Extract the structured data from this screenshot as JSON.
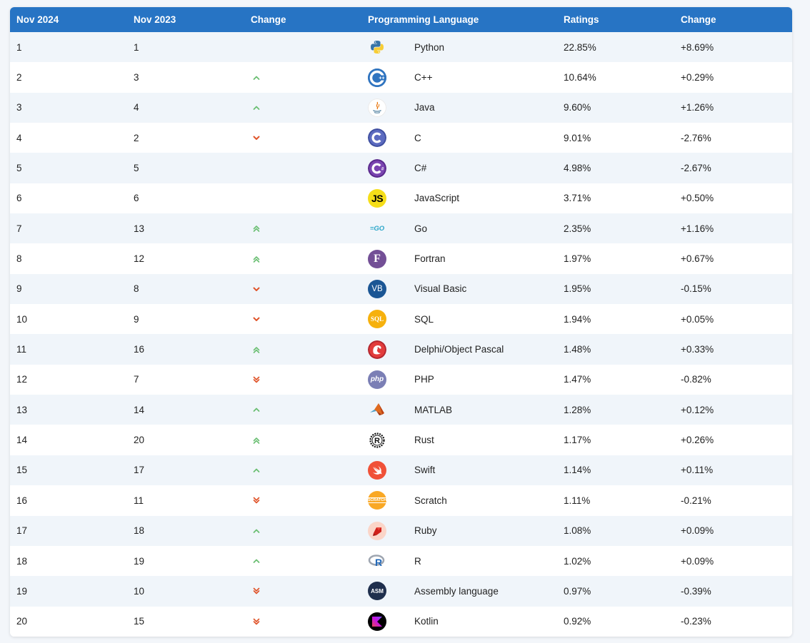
{
  "header": {
    "col_nov2024": "Nov 2024",
    "col_nov2023": "Nov 2023",
    "col_change": "Change",
    "col_language": "Programming Language",
    "col_ratings": "Ratings",
    "col_change2": "Change"
  },
  "colors": {
    "header_bg": "#2774c4",
    "up": "#6bbf73",
    "down": "#e0552b",
    "row_alt": "#f0f5fa"
  },
  "rows": [
    {
      "rank": "1",
      "prev": "1",
      "trend": "none",
      "lang": "Python",
      "rating": "22.85%",
      "change": "+8.69%",
      "logo": "python-logo"
    },
    {
      "rank": "2",
      "prev": "3",
      "trend": "up",
      "lang": "C++",
      "rating": "10.64%",
      "change": "+0.29%",
      "logo": "cpp-logo"
    },
    {
      "rank": "3",
      "prev": "4",
      "trend": "up",
      "lang": "Java",
      "rating": "9.60%",
      "change": "+1.26%",
      "logo": "java-logo"
    },
    {
      "rank": "4",
      "prev": "2",
      "trend": "down",
      "lang": "C",
      "rating": "9.01%",
      "change": "-2.76%",
      "logo": "c-logo"
    },
    {
      "rank": "5",
      "prev": "5",
      "trend": "none",
      "lang": "C#",
      "rating": "4.98%",
      "change": "-2.67%",
      "logo": "csharp-logo"
    },
    {
      "rank": "6",
      "prev": "6",
      "trend": "none",
      "lang": "JavaScript",
      "rating": "3.71%",
      "change": "+0.50%",
      "logo": "javascript-logo"
    },
    {
      "rank": "7",
      "prev": "13",
      "trend": "up2",
      "lang": "Go",
      "rating": "2.35%",
      "change": "+1.16%",
      "logo": "go-logo"
    },
    {
      "rank": "8",
      "prev": "12",
      "trend": "up2",
      "lang": "Fortran",
      "rating": "1.97%",
      "change": "+0.67%",
      "logo": "fortran-logo"
    },
    {
      "rank": "9",
      "prev": "8",
      "trend": "down",
      "lang": "Visual Basic",
      "rating": "1.95%",
      "change": "-0.15%",
      "logo": "visual-basic-logo"
    },
    {
      "rank": "10",
      "prev": "9",
      "trend": "down",
      "lang": "SQL",
      "rating": "1.94%",
      "change": "+0.05%",
      "logo": "sql-logo"
    },
    {
      "rank": "11",
      "prev": "16",
      "trend": "up2",
      "lang": "Delphi/Object Pascal",
      "rating": "1.48%",
      "change": "+0.33%",
      "logo": "delphi-logo"
    },
    {
      "rank": "12",
      "prev": "7",
      "trend": "down2",
      "lang": "PHP",
      "rating": "1.47%",
      "change": "-0.82%",
      "logo": "php-logo"
    },
    {
      "rank": "13",
      "prev": "14",
      "trend": "up",
      "lang": "MATLAB",
      "rating": "1.28%",
      "change": "+0.12%",
      "logo": "matlab-logo"
    },
    {
      "rank": "14",
      "prev": "20",
      "trend": "up2",
      "lang": "Rust",
      "rating": "1.17%",
      "change": "+0.26%",
      "logo": "rust-logo"
    },
    {
      "rank": "15",
      "prev": "17",
      "trend": "up",
      "lang": "Swift",
      "rating": "1.14%",
      "change": "+0.11%",
      "logo": "swift-logo"
    },
    {
      "rank": "16",
      "prev": "11",
      "trend": "down2",
      "lang": "Scratch",
      "rating": "1.11%",
      "change": "-0.21%",
      "logo": "scratch-logo"
    },
    {
      "rank": "17",
      "prev": "18",
      "trend": "up",
      "lang": "Ruby",
      "rating": "1.08%",
      "change": "+0.09%",
      "logo": "ruby-logo"
    },
    {
      "rank": "18",
      "prev": "19",
      "trend": "up",
      "lang": "R",
      "rating": "1.02%",
      "change": "+0.09%",
      "logo": "r-logo"
    },
    {
      "rank": "19",
      "prev": "10",
      "trend": "down2",
      "lang": "Assembly language",
      "rating": "0.97%",
      "change": "-0.39%",
      "logo": "assembly-logo"
    },
    {
      "rank": "20",
      "prev": "15",
      "trend": "down2",
      "lang": "Kotlin",
      "rating": "0.92%",
      "change": "-0.23%",
      "logo": "kotlin-logo"
    }
  ],
  "logo_text": {
    "javascript-logo": "JS",
    "go-logo": "=GO",
    "fortran-logo": "F",
    "visual-basic-logo": "VB",
    "sql-logo": "SQL",
    "php-logo": "php",
    "rust-logo": "R",
    "r-logo": "R",
    "assembly-logo": "ASM",
    "c-logo": "C",
    "csharp-logo": "C#",
    "cpp-logo": "C++"
  }
}
